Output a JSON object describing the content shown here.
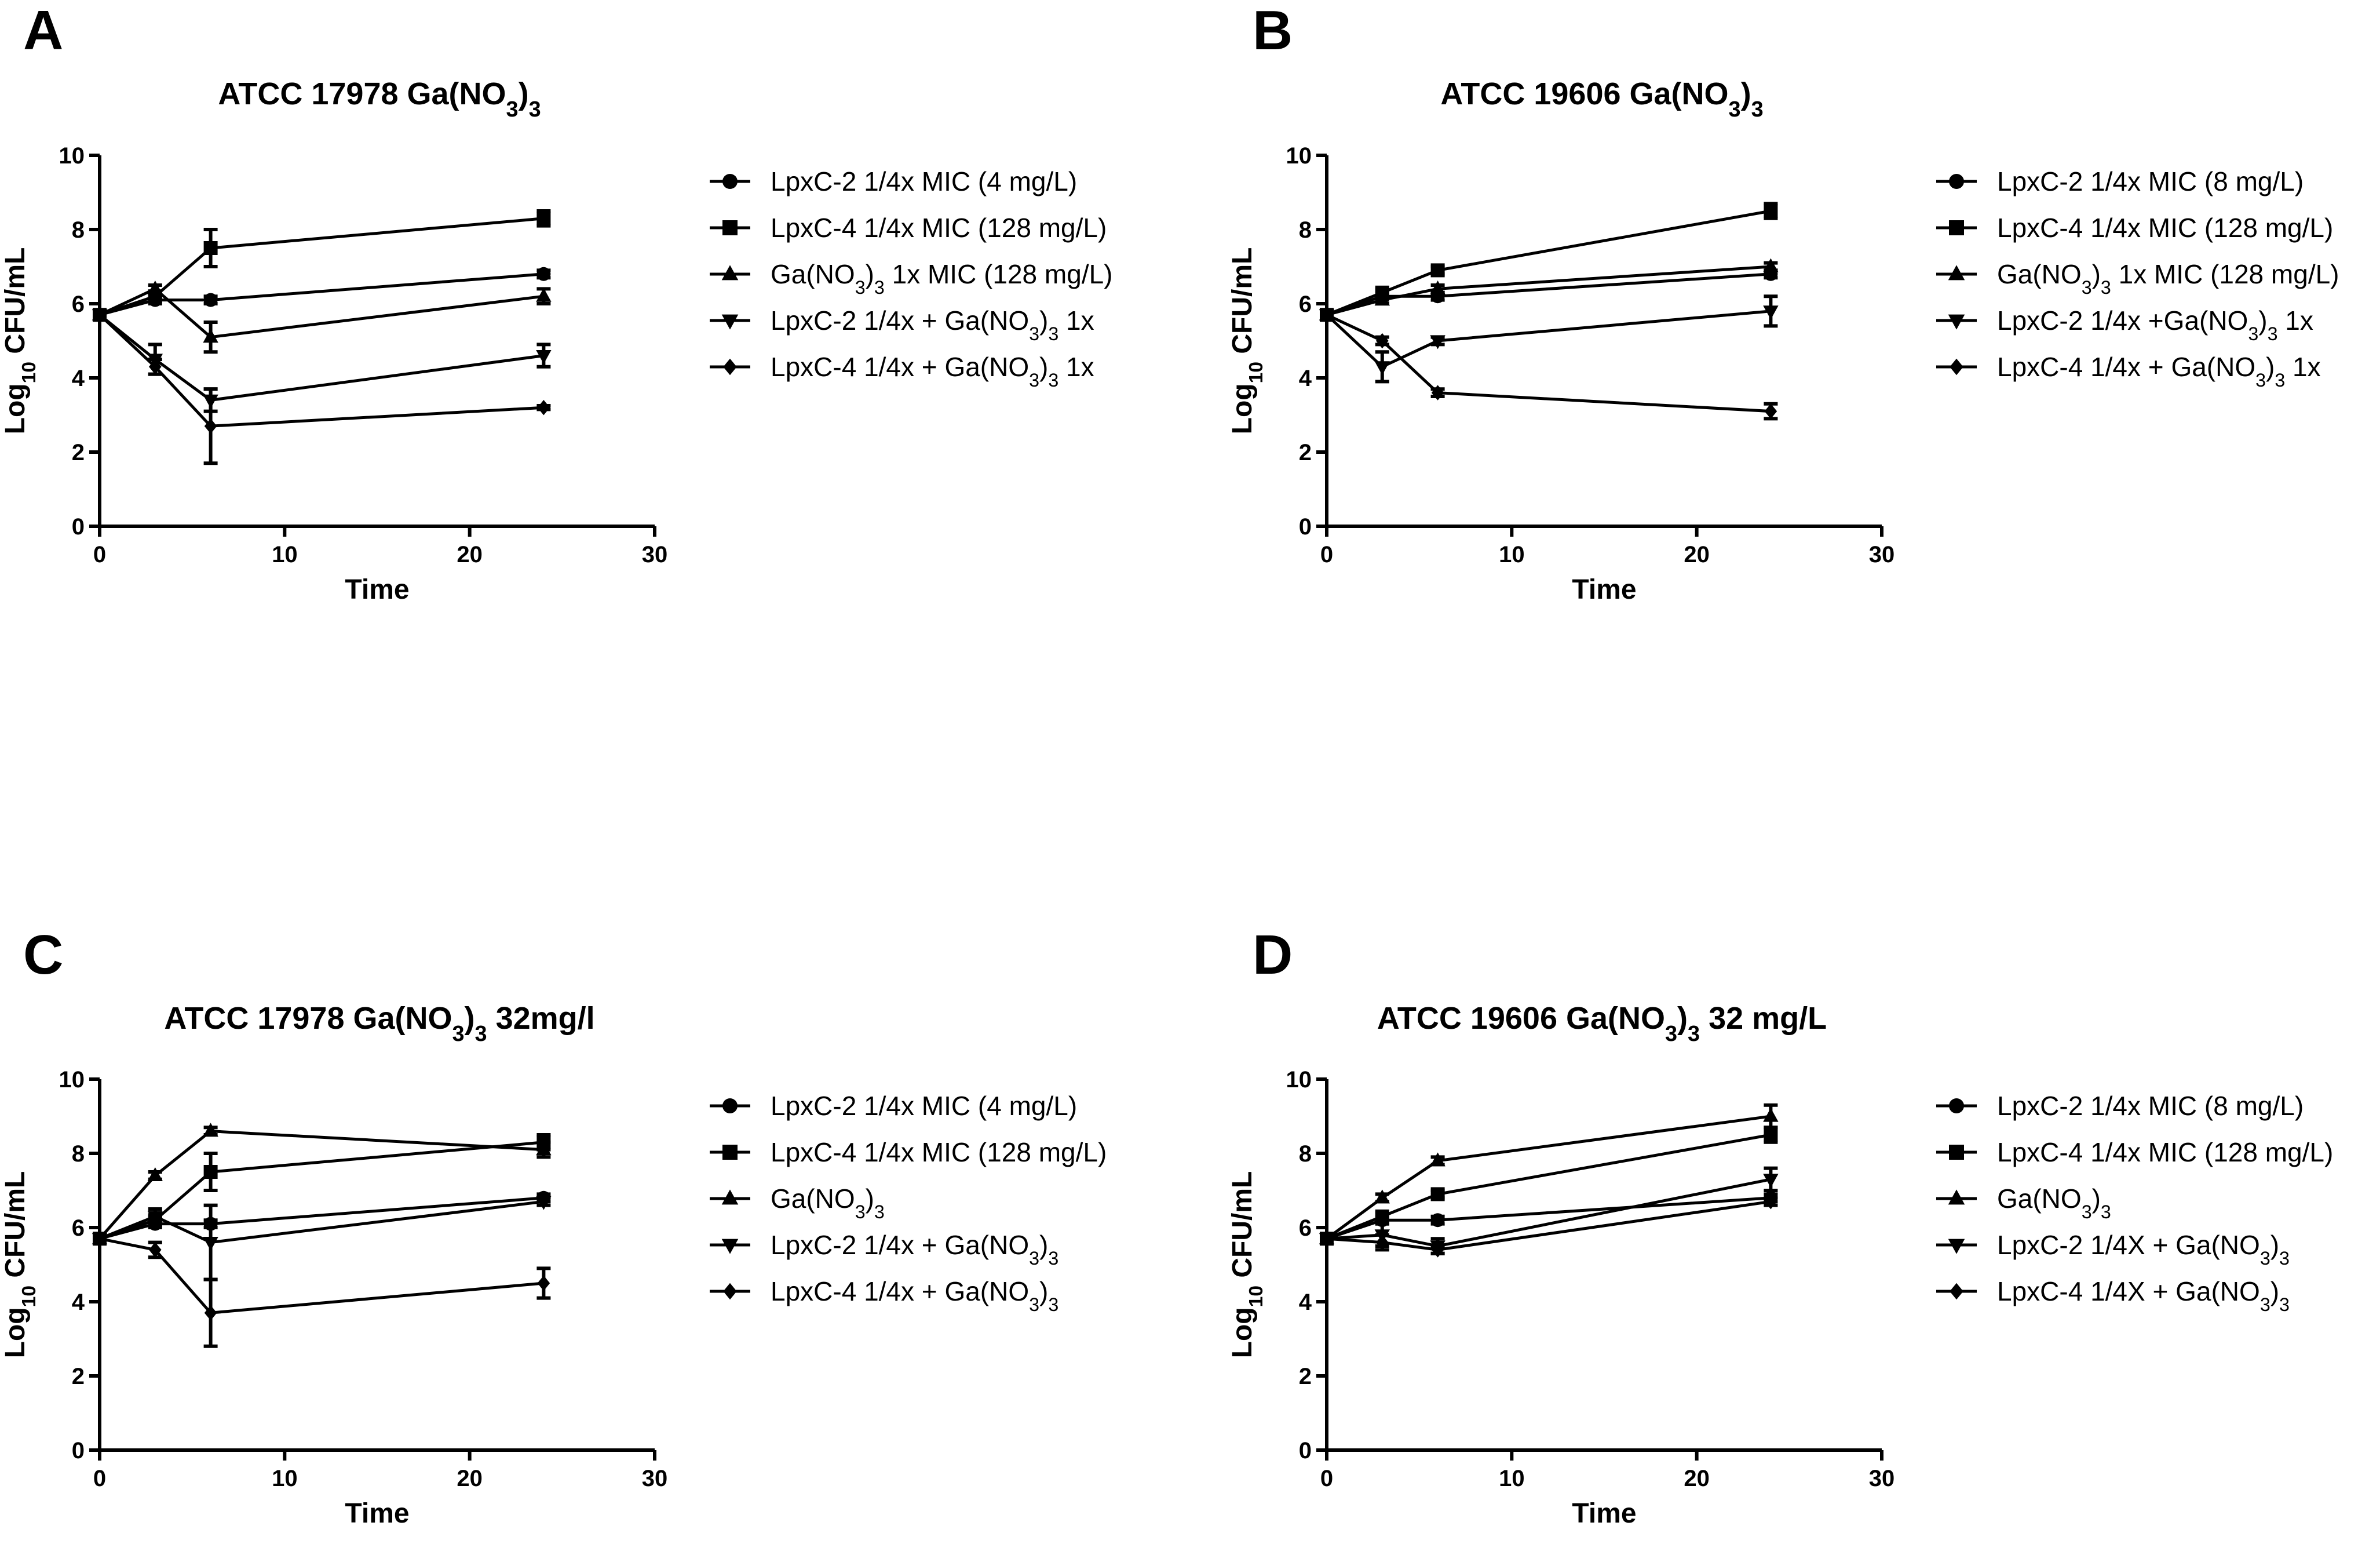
{
  "chart_data": [
    {
      "type": "line",
      "panel": "A",
      "title_parts": [
        "ATCC 17978 Ga(NO",
        "3",
        ")",
        "3"
      ],
      "xlabel": "Time",
      "ylabel_parts": [
        "Log",
        "10",
        " CFU/mL"
      ],
      "xlim": [
        0,
        30
      ],
      "ylim": [
        0,
        10
      ],
      "xticks": [
        0,
        10,
        20,
        30
      ],
      "yticks": [
        0,
        2,
        4,
        6,
        8,
        10
      ],
      "x": [
        0,
        3,
        6,
        24
      ],
      "legend_position": "right",
      "series": [
        {
          "name": "LpxC-2 1/4x MIC (4 mg/L)",
          "marker": "circle",
          "values": [
            5.7,
            6.1,
            6.1,
            6.8
          ],
          "errors": [
            0,
            0.1,
            0.1,
            0.1
          ]
        },
        {
          "name": "LpxC-4 1/4x MIC (128 mg/L)",
          "marker": "square",
          "values": [
            5.7,
            6.2,
            7.5,
            8.3
          ],
          "errors": [
            0,
            0.1,
            0.5,
            0.2
          ]
        },
        {
          "name_parts": [
            "Ga(NO",
            "3",
            ")",
            "3",
            " 1x MIC (128 mg/L)"
          ],
          "marker": "triangle-up",
          "values": [
            5.7,
            6.4,
            5.1,
            6.2
          ],
          "errors": [
            0,
            0.1,
            0.4,
            0.2
          ]
        },
        {
          "name_parts": [
            "LpxC-2 1/4x + Ga(NO",
            "3",
            ")",
            "3",
            " 1x"
          ],
          "marker": "triangle-down",
          "values": [
            5.7,
            4.5,
            3.4,
            4.6
          ],
          "errors": [
            0,
            0.4,
            0.3,
            0.3
          ]
        },
        {
          "name_parts": [
            "LpxC-4 1/4x + Ga(NO",
            "3",
            ")",
            "3",
            " 1x"
          ],
          "marker": "diamond",
          "values": [
            5.7,
            4.3,
            2.7,
            3.2
          ],
          "errors": [
            0,
            0.2,
            1.0,
            0.05
          ]
        }
      ]
    },
    {
      "type": "line",
      "panel": "B",
      "title_parts": [
        "ATCC 19606 Ga(NO",
        "3",
        ")",
        "3"
      ],
      "xlabel": "Time",
      "ylabel_parts": [
        "Log",
        "10",
        " CFU/mL"
      ],
      "xlim": [
        0,
        30
      ],
      "ylim": [
        0,
        10
      ],
      "xticks": [
        0,
        10,
        20,
        30
      ],
      "yticks": [
        0,
        2,
        4,
        6,
        8,
        10
      ],
      "x": [
        0,
        3,
        6,
        24
      ],
      "legend_position": "right",
      "series": [
        {
          "name": "LpxC-2 1/4x MIC (8 mg/L)",
          "marker": "circle",
          "values": [
            5.7,
            6.2,
            6.2,
            6.8
          ],
          "errors": [
            0,
            0.1,
            0.1,
            0.1
          ]
        },
        {
          "name": "LpxC-4 1/4x MIC (128 mg/L)",
          "marker": "square",
          "values": [
            5.7,
            6.3,
            6.9,
            8.5
          ],
          "errors": [
            0,
            0.1,
            0.1,
            0.2
          ]
        },
        {
          "name_parts": [
            "Ga(NO",
            "3",
            ")",
            "3",
            " 1x MIC (128 mg/L)"
          ],
          "marker": "triangle-up",
          "values": [
            5.7,
            6.1,
            6.4,
            7.0
          ],
          "errors": [
            0,
            0.1,
            0.1,
            0.1
          ]
        },
        {
          "name_parts": [
            "LpxC-2 1/4x +Ga(NO",
            "3",
            ")",
            "3",
            " 1x"
          ],
          "marker": "triangle-down",
          "values": [
            5.7,
            4.3,
            5.0,
            5.8
          ],
          "errors": [
            0,
            0.4,
            0.1,
            0.4
          ]
        },
        {
          "name_parts": [
            "LpxC-4 1/4x + Ga(NO",
            "3",
            ")",
            "3",
            " 1x"
          ],
          "marker": "diamond",
          "values": [
            5.7,
            5.0,
            3.6,
            3.1
          ],
          "errors": [
            0,
            0.1,
            0.1,
            0.2
          ]
        }
      ]
    },
    {
      "type": "line",
      "panel": "C",
      "title_parts": [
        "ATCC 17978 Ga(NO",
        "3",
        ")",
        "3",
        " 32mg/l"
      ],
      "xlabel": "Time",
      "ylabel_parts": [
        "Log",
        "10",
        " CFU/mL"
      ],
      "xlim": [
        0,
        30
      ],
      "ylim": [
        0,
        10
      ],
      "xticks": [
        0,
        10,
        20,
        30
      ],
      "yticks": [
        0,
        2,
        4,
        6,
        8,
        10
      ],
      "x": [
        0,
        3,
        6,
        24
      ],
      "legend_position": "right",
      "series": [
        {
          "name": "LpxC-2 1/4x MIC (4 mg/L)",
          "marker": "circle",
          "values": [
            5.7,
            6.1,
            6.1,
            6.8
          ],
          "errors": [
            0,
            0.1,
            0.1,
            0.1
          ]
        },
        {
          "name": "LpxC-4 1/4x MIC (128 mg/L)",
          "marker": "square",
          "values": [
            5.7,
            6.2,
            7.5,
            8.3
          ],
          "errors": [
            0,
            0.1,
            0.5,
            0.2
          ]
        },
        {
          "name_parts": [
            "Ga(NO",
            "3",
            ")",
            "3"
          ],
          "marker": "triangle-up",
          "values": [
            5.7,
            7.4,
            8.6,
            8.1
          ],
          "errors": [
            0,
            0.1,
            0.1,
            0.2
          ]
        },
        {
          "name_parts": [
            "LpxC-2 1/4x + Ga(NO",
            "3",
            ")",
            "3"
          ],
          "marker": "triangle-down",
          "values": [
            5.7,
            6.3,
            5.6,
            6.7
          ],
          "errors": [
            0,
            0.2,
            1.0,
            0.1
          ]
        },
        {
          "name_parts": [
            "LpxC-4 1/4x + Ga(NO",
            "3",
            ")",
            "3"
          ],
          "marker": "diamond",
          "values": [
            5.7,
            5.4,
            3.7,
            4.5
          ],
          "errors": [
            0,
            0.2,
            0.9,
            0.4
          ]
        }
      ]
    },
    {
      "type": "line",
      "panel": "D",
      "title_parts": [
        "ATCC 19606 Ga(NO",
        "3",
        ")",
        "3",
        " 32 mg/L"
      ],
      "xlabel": "Time",
      "ylabel_parts": [
        "Log",
        "10",
        " CFU/mL"
      ],
      "xlim": [
        0,
        30
      ],
      "ylim": [
        0,
        10
      ],
      "xticks": [
        0,
        10,
        20,
        30
      ],
      "yticks": [
        0,
        2,
        4,
        6,
        8,
        10
      ],
      "x": [
        0,
        3,
        6,
        24
      ],
      "legend_position": "right",
      "series": [
        {
          "name": "LpxC-2 1/4x MIC (8 mg/L)",
          "marker": "circle",
          "values": [
            5.7,
            6.2,
            6.2,
            6.8
          ],
          "errors": [
            0,
            0.1,
            0.1,
            0.1
          ]
        },
        {
          "name": "LpxC-4 1/4x MIC (128 mg/L)",
          "marker": "square",
          "values": [
            5.7,
            6.3,
            6.9,
            8.5
          ],
          "errors": [
            0,
            0.1,
            0.1,
            0.2
          ]
        },
        {
          "name_parts": [
            "Ga(NO",
            "3",
            ")",
            "3"
          ],
          "marker": "triangle-up",
          "values": [
            5.7,
            6.8,
            7.8,
            9.0
          ],
          "errors": [
            0,
            0.1,
            0.1,
            0.3
          ]
        },
        {
          "name_parts": [
            "LpxC-2 1/4X + Ga(NO",
            "3",
            ")",
            "3"
          ],
          "marker": "triangle-down",
          "values": [
            5.7,
            5.8,
            5.5,
            7.3
          ],
          "errors": [
            0,
            0.3,
            0.2,
            0.3
          ]
        },
        {
          "name_parts": [
            "LpxC-4 1/4X + Ga(NO",
            "3",
            ")",
            "3"
          ],
          "marker": "diamond",
          "values": [
            5.7,
            5.6,
            5.4,
            6.7
          ],
          "errors": [
            0,
            0.2,
            0.1,
            0.1
          ]
        }
      ]
    }
  ]
}
